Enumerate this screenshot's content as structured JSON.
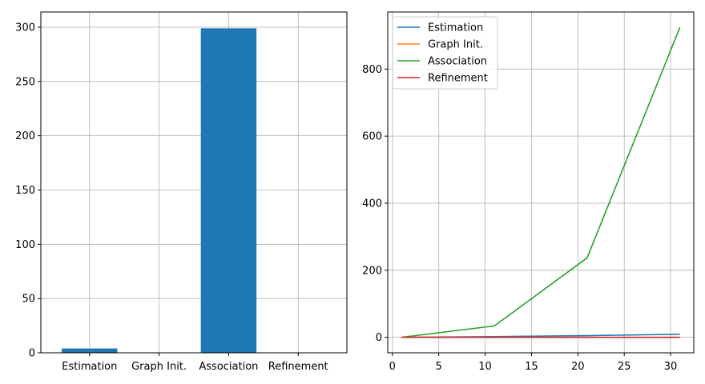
{
  "chart_data": [
    {
      "type": "bar",
      "categories": [
        "Estimation",
        "Graph Init.",
        "Association",
        "Refinement"
      ],
      "values": [
        4,
        0,
        299,
        0
      ],
      "ylim": [
        0,
        314
      ],
      "yticks": [
        0,
        50,
        100,
        150,
        200,
        250,
        300
      ],
      "grid": true,
      "color": "#1f77b4"
    },
    {
      "type": "line",
      "x": [
        1,
        11,
        21,
        31
      ],
      "series": [
        {
          "name": "Estimation",
          "values": [
            0,
            2,
            5,
            9
          ],
          "color": "#1f77b4"
        },
        {
          "name": "Graph Init.",
          "values": [
            0,
            0,
            0,
            0
          ],
          "color": "#ff7f0e"
        },
        {
          "name": "Association",
          "values": [
            0,
            34,
            237,
            924
          ],
          "color": "#2ca02c"
        },
        {
          "name": "Refinement",
          "values": [
            0,
            0,
            0,
            0
          ],
          "color": "#d62728"
        }
      ],
      "xlim": [
        -0.5,
        32.5
      ],
      "ylim": [
        -46.2,
        970.2
      ],
      "xticks": [
        0,
        5,
        10,
        15,
        20,
        25,
        30
      ],
      "yticks": [
        0,
        200,
        400,
        600,
        800
      ],
      "grid": true,
      "legend_location": "top-left"
    }
  ]
}
